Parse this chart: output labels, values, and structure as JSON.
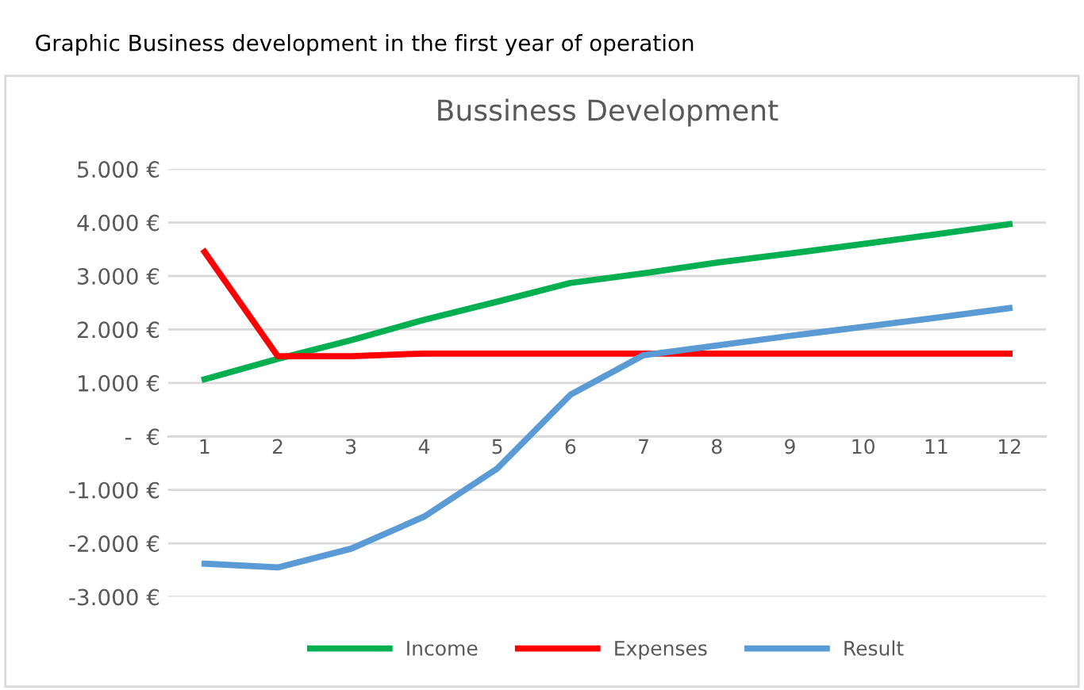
{
  "chart_data": {
    "type": "line",
    "title": "Bussiness Development",
    "subtitle": "Graphic Business development in the first year of operation",
    "categories": [
      "1",
      "2",
      "3",
      "4",
      "5",
      "6",
      "7",
      "8",
      "9",
      "10",
      "11",
      "12"
    ],
    "series": [
      {
        "name": "Income",
        "color": "#00b050",
        "values": [
          1070,
          1450,
          1800,
          2180,
          2520,
          2870,
          3050,
          3250,
          3420,
          3600,
          3780,
          3970
        ]
      },
      {
        "name": "Expenses",
        "color": "#ff0000",
        "values": [
          3450,
          1500,
          1500,
          1550,
          1550,
          1550,
          1550,
          1550,
          1550,
          1550,
          1550,
          1550
        ]
      },
      {
        "name": "Result",
        "color": "#5b9bd5",
        "values": [
          -2380,
          -2450,
          -2100,
          -1500,
          -600,
          780,
          1520,
          1700,
          1880,
          2050,
          2220,
          2400
        ]
      }
    ],
    "ylim": [
      -3000,
      5000
    ],
    "yticks": [
      {
        "value": 5000,
        "label": "5.000 €"
      },
      {
        "value": 4000,
        "label": "4.000 €"
      },
      {
        "value": 3000,
        "label": "3.000 €"
      },
      {
        "value": 2000,
        "label": "2.000 €"
      },
      {
        "value": 1000,
        "label": "1.000 €"
      },
      {
        "value": 0,
        "label": "-  €"
      },
      {
        "value": -1000,
        "label": "-1.000 €"
      },
      {
        "value": -2000,
        "label": "-2.000 €"
      },
      {
        "value": -3000,
        "label": "-3.000 €"
      }
    ],
    "grid": "y",
    "legend": "bottom",
    "marker": "none",
    "line_style": "solid"
  }
}
